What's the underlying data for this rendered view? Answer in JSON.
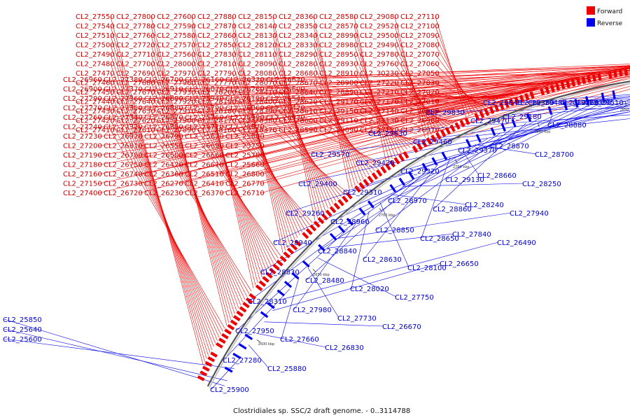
{
  "caption": "Clostridiales sp. SSC/2 draft genome. - 0..3114788",
  "legend": [
    {
      "label": "Forward",
      "color": "#ee0000"
    },
    {
      "label": "Reverse",
      "color": "#0000ee"
    }
  ],
  "colors": {
    "forward": "#ee0000",
    "reverse": "#0000ee",
    "backbone": "#777777"
  },
  "scale_ticks": [
    "2600 kbp",
    "2650 kbp",
    "2700 kbp",
    "2750 kbp",
    "2800 kbp",
    "2850 kbp",
    "2900 kbp",
    "2950 kbp",
    "3000 kbp"
  ],
  "forward_labels": [
    "CL2_27550",
    "CL2_27540",
    "CL2_27510",
    "CL2_27500",
    "CL2_27490",
    "CL2_27480",
    "CL2_27470",
    "CL2_27460",
    "CL2_27450",
    "CL2_27440",
    "CL2_27430",
    "CL2_27420",
    "CL2_27410",
    "CL2_27800",
    "CL2_27780",
    "CL2_27760",
    "CL2_27720",
    "CL2_27710",
    "CL2_27700",
    "CL2_27690",
    "CL2_27680",
    "CL2_27670",
    "CL2_27640",
    "CL2_27630",
    "CL2_27620",
    "CL2_27610",
    "CL2_27600",
    "CL2_27590",
    "CL2_27580",
    "CL2_27570",
    "CL2_27560",
    "CL2_28000",
    "CL2_27970",
    "CL2_27960",
    "CL2_27930",
    "CL2_27920",
    "CL2_27910",
    "CL2_27900",
    "CL2_27890",
    "CL2_27880",
    "CL2_27870",
    "CL2_27860",
    "CL2_27850",
    "CL2_27830",
    "CL2_27810",
    "CL2_27790",
    "CL2_27770",
    "CL2_28200",
    "CL2_28190",
    "CL2_28180",
    "CL2_28170",
    "CL2_28160",
    "CL2_28150",
    "CL2_28140",
    "CL2_28130",
    "CL2_28120",
    "CL2_28110",
    "CL2_28090",
    "CL2_28080",
    "CL2_28070",
    "CL2_28410",
    "CL2_28400",
    "CL2_28390",
    "CL2_28380",
    "CL2_28370",
    "CL2_28360",
    "CL2_28350",
    "CL2_28340",
    "CL2_28330",
    "CL2_28290",
    "CL2_28280",
    "CL2_28680",
    "CL2_28670",
    "CL2_28640",
    "CL2_28620",
    "CL2_28610",
    "CL2_28600",
    "CL2_28590",
    "CL2_28580",
    "CL2_28570",
    "CL2_28990",
    "CL2_28980",
    "CL2_28950",
    "CL2_28930",
    "CL2_28910",
    "CL2_28900",
    "CL2_28890",
    "CL2_29170",
    "CL2_29150",
    "CL2_29110",
    "CL2_29090",
    "CL2_29080",
    "CL2_29520",
    "CL2_29500",
    "CL2_29490",
    "CL2_29780",
    "CL2_29760",
    "CL2_30230",
    "CL2_27220",
    "CL2_27210",
    "CL2_27170",
    "CL2_27140",
    "CL2_27130",
    "CL2_27120",
    "CL2_27110",
    "CL2_27100",
    "CL2_27090",
    "CL2_27080",
    "CL2_27070",
    "CL2_27060",
    "CL2_27050",
    "CL2_27030",
    "CL2_27020",
    "CL2_27010",
    "CL2_26990",
    "CL2_26980",
    "CL2_26970",
    "CL2_26960",
    "CL2_26900",
    "CL2_27290",
    "CL2_27270",
    "CL2_27260",
    "CL2_27240",
    "CL2_27230",
    "CL2_27200",
    "CL2_27190",
    "CL2_27180",
    "CL2_27160",
    "CL2_27150",
    "CL2_27400",
    "CL2_27380",
    "CL2_27370",
    "CL2_27360",
    "CL2_27350",
    "CL2_27340",
    "CL2_27320",
    "CL2_26920",
    "CL2_26810",
    "CL2_26780",
    "CL2_26750",
    "CL2_26740",
    "CL2_26730",
    "CL2_26720",
    "CL2_26700",
    "CL2_26910",
    "CL2_26890",
    "CL2_26880",
    "CL2_26870",
    "CL2_26850",
    "CL2_26790",
    "CL2_26550",
    "CL2_26500",
    "CL2_26420",
    "CL2_26360",
    "CL2_26270",
    "CL2_26230",
    "CL2_26160",
    "CL2_26070",
    "CL2_25940",
    "CL2_25790",
    "CL2_25760",
    "CL2_25710",
    "CL2_25670",
    "CL2_26690",
    "CL2_26660",
    "CL2_26610",
    "CL2_26510",
    "CL2_26410",
    "CL2_26370",
    "CL2_26330",
    "CL2_26260",
    "CL2_26190",
    "CL2_26060",
    "CL2_25990",
    "CL2_25870",
    "CL2_25800",
    "CL2_25750",
    "CL2_25700",
    "CL2_25660",
    "CL2_26800",
    "CL2_26770",
    "CL2_26710",
    "CL2_26630",
    "CL2_26600",
    "CL2_26540",
    "CL2_26470",
    "CL2_26930"
  ],
  "reverse_labels": [
    "CL2_25850",
    "CL2_25640",
    "CL2_25600",
    "CL2_25900",
    "CL2_25880",
    "CL2_26830",
    "CL2_26670",
    "CL2_26650",
    "CL2_26490",
    "CL2_27280",
    "CL2_27660",
    "CL2_27730",
    "CL2_27750",
    "CL2_27840",
    "CL2_27940",
    "CL2_27950",
    "CL2_27980",
    "CL2_28020",
    "CL2_28100",
    "CL2_28240",
    "CL2_28250",
    "CL2_28310",
    "CL2_28480",
    "CL2_28630",
    "CL2_28650",
    "CL2_28660",
    "CL2_28700",
    "CL2_28830",
    "CL2_28840",
    "CL2_28850",
    "CL2_28860",
    "CL2_28870",
    "CL2_28880",
    "CL2_28940",
    "CL2_28960",
    "CL2_28970",
    "CL2_29130",
    "CL2_29180",
    "CL2_29250",
    "CL2_29260",
    "CL2_29310",
    "CL2_29320",
    "CL2_29370",
    "CL2_29380",
    "CL2_29390",
    "CL2_29400",
    "CL2_29430",
    "CL2_29460",
    "CL2_29470",
    "CL2_29480",
    "CL2_29510",
    "CL2_29570",
    "CL2_29630",
    "CL2_29830",
    "CL2_29840"
  ]
}
